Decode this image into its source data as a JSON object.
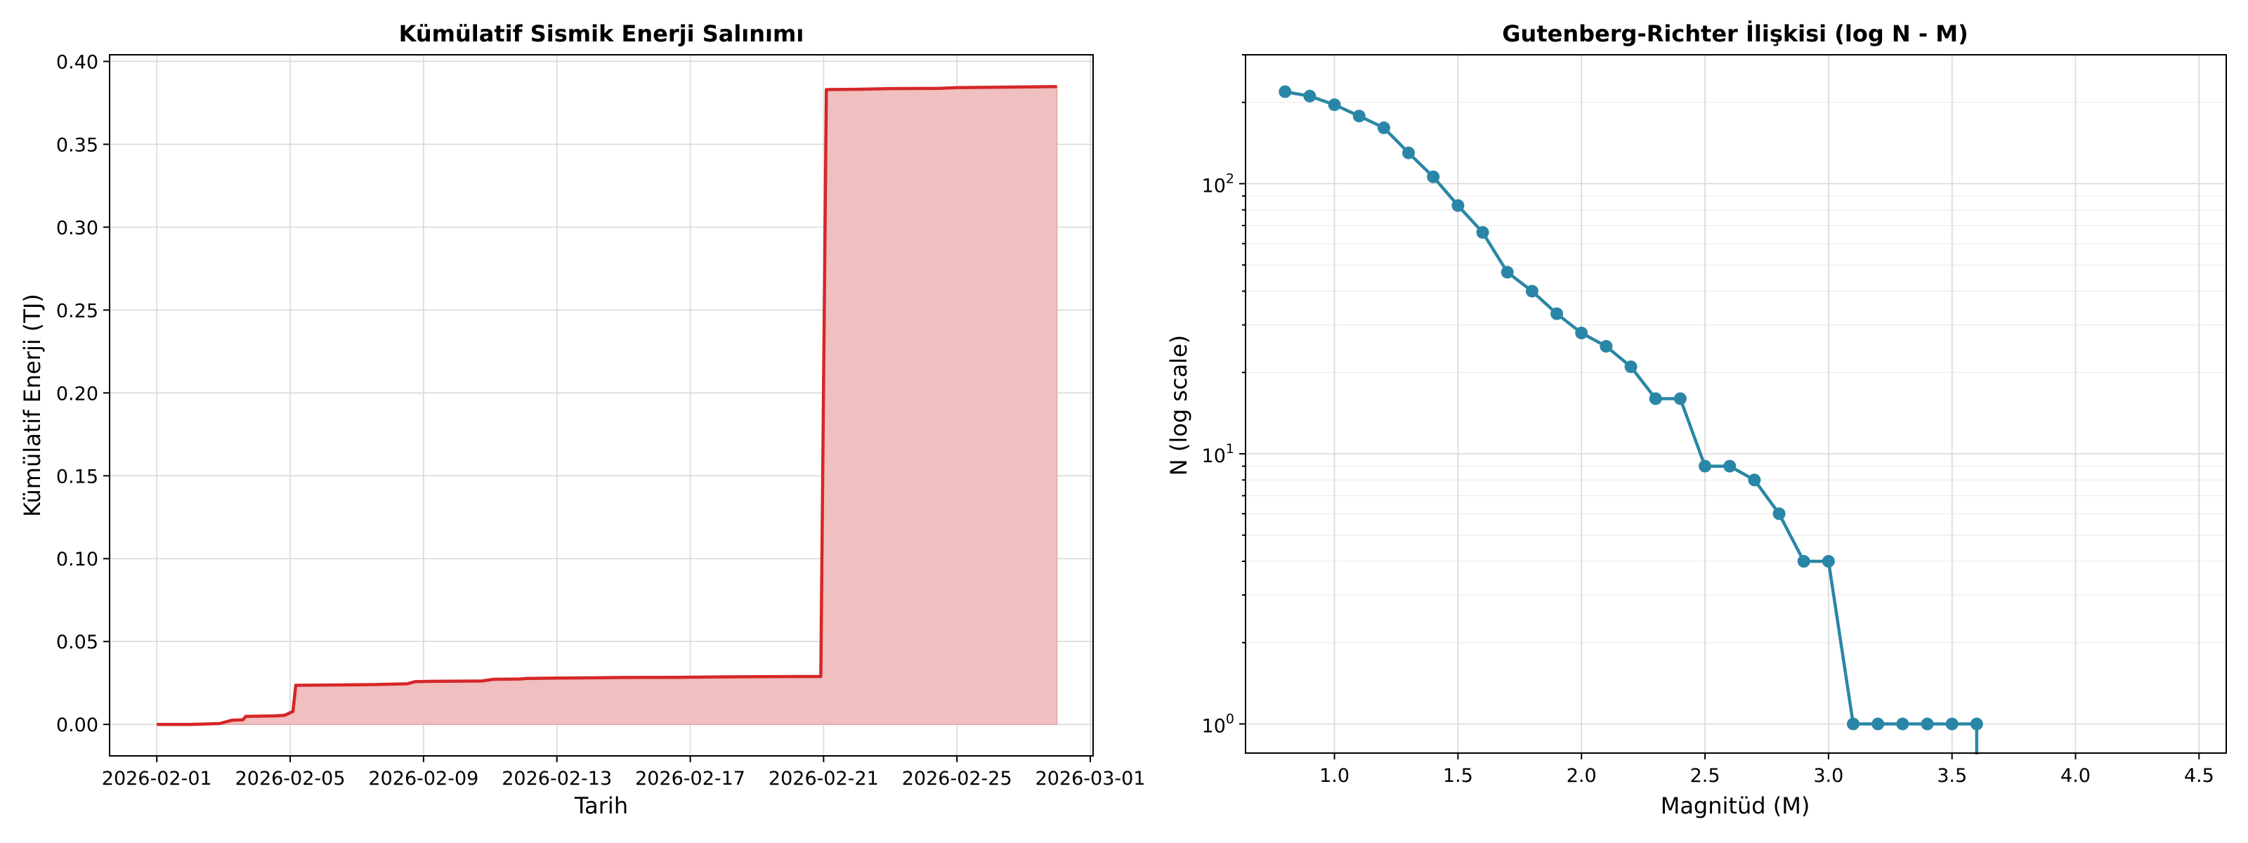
{
  "chart_data": [
    {
      "type": "area",
      "title": "Kümülatif Sismik Enerji Salınımı",
      "xlabel": "Tarih",
      "ylabel": "Kümülatif Enerji (TJ)",
      "x_ticks": [
        "2026-02-01",
        "2026-02-05",
        "2026-02-09",
        "2026-02-13",
        "2026-02-17",
        "2026-02-21",
        "2026-02-25",
        "2026-03-01"
      ],
      "y_ticks": [
        "0.00",
        "0.05",
        "0.10",
        "0.15",
        "0.20",
        "0.25",
        "0.30",
        "0.35",
        "0.40"
      ],
      "xlim": [
        "2026-01-30T14:00",
        "2026-03-01T02:00"
      ],
      "ylim": [
        -0.019,
        0.404
      ],
      "grid": true,
      "colors": {
        "line": "#d62728",
        "fill": "#f0bfbf"
      },
      "series": [
        {
          "points": [
            [
              "2026-02-01T00:00",
              0.0
            ],
            [
              "2026-02-02T00:00",
              0.0
            ],
            [
              "2026-02-02T21:00",
              0.0005
            ],
            [
              "2026-02-03T06:00",
              0.0025
            ],
            [
              "2026-02-03T14:00",
              0.0028
            ],
            [
              "2026-02-03T16:00",
              0.0048
            ],
            [
              "2026-02-04T12:00",
              0.0051
            ],
            [
              "2026-02-04T20:00",
              0.0055
            ],
            [
              "2026-02-05T02:00",
              0.0078
            ],
            [
              "2026-02-05T04:00",
              0.0236
            ],
            [
              "2026-02-06T12:00",
              0.0238
            ],
            [
              "2026-02-07T12:00",
              0.024
            ],
            [
              "2026-02-08T12:00",
              0.0245
            ],
            [
              "2026-02-08T18:00",
              0.0258
            ],
            [
              "2026-02-09T12:00",
              0.026
            ],
            [
              "2026-02-10T18:00",
              0.0262
            ],
            [
              "2026-02-11T02:00",
              0.0272
            ],
            [
              "2026-02-11T22:00",
              0.0274
            ],
            [
              "2026-02-12T02:00",
              0.0277
            ],
            [
              "2026-02-13T00:00",
              0.0279
            ],
            [
              "2026-02-14T00:00",
              0.0281
            ],
            [
              "2026-02-15T00:00",
              0.0283
            ],
            [
              "2026-02-16T12:00",
              0.0284
            ],
            [
              "2026-02-17T12:00",
              0.0286
            ],
            [
              "2026-02-19T00:00",
              0.0288
            ],
            [
              "2026-02-20T22:00",
              0.0289
            ],
            [
              "2026-02-21T02:00",
              0.383
            ],
            [
              "2026-02-22T00:00",
              0.3832
            ],
            [
              "2026-02-23T00:00",
              0.3836
            ],
            [
              "2026-02-24T12:00",
              0.3838
            ],
            [
              "2026-02-25T00:00",
              0.3842
            ],
            [
              "2026-02-26T12:00",
              0.3845
            ],
            [
              "2026-02-28T00:00",
              0.3848
            ]
          ]
        }
      ]
    },
    {
      "type": "line",
      "title": "Gutenberg-Richter İlişkisi (log N - M)",
      "xlabel": "Magnitüd (M)",
      "ylabel": "N (log scale)",
      "yscale": "log",
      "x_ticks": [
        "1.0",
        "1.5",
        "2.0",
        "2.5",
        "3.0",
        "3.5",
        "4.0",
        "4.5"
      ],
      "y_ticks": [
        {
          "value": 1,
          "base": "10",
          "exp": "0"
        },
        {
          "value": 10,
          "base": "10",
          "exp": "1"
        },
        {
          "value": 100,
          "base": "10",
          "exp": "2"
        }
      ],
      "xlim": [
        0.64,
        4.61
      ],
      "ylim": [
        0.78,
        300
      ],
      "grid": true,
      "colors": {
        "line": "#2a86a6",
        "marker": "#2a86a6"
      },
      "series": [
        {
          "x": [
            0.8,
            0.9,
            1.0,
            1.1,
            1.2,
            1.3,
            1.4,
            1.5,
            1.6,
            1.7,
            1.8,
            1.9,
            2.0,
            2.1,
            2.2,
            2.3,
            2.4,
            2.5,
            2.6,
            2.7,
            2.8,
            2.9,
            3.0,
            3.1,
            3.2,
            3.3,
            3.4,
            3.5,
            3.6
          ],
          "y": [
            219,
            211,
            196,
            178,
            161,
            130,
            106,
            83,
            66,
            47,
            40,
            33,
            28,
            25,
            21,
            16,
            16,
            9,
            9,
            8,
            6,
            4,
            4,
            1,
            1,
            1,
            1,
            1,
            1
          ],
          "tail_to_zero": {
            "x": 3.7,
            "y": 0
          }
        }
      ]
    }
  ]
}
